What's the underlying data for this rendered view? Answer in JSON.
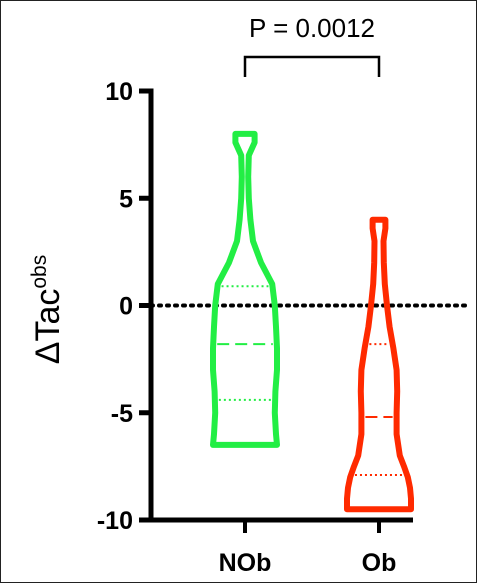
{
  "chart_data": {
    "type": "violin",
    "ylabel_main": "ΔTac",
    "ylabel_sup": "obs",
    "ylim": [
      -10,
      10
    ],
    "yticks": [
      {
        "value": 10,
        "label": "10"
      },
      {
        "value": 5,
        "label": "5"
      },
      {
        "value": 0,
        "label": "0"
      },
      {
        "value": -5,
        "label": "-5"
      },
      {
        "value": -10,
        "label": "-10"
      }
    ],
    "reference_line": {
      "value": 0,
      "style": "dotted"
    },
    "comparison": {
      "text": "P = 0.0012",
      "between": [
        "NOb",
        "Ob"
      ]
    },
    "groups": [
      {
        "name": "NOb",
        "color": "#22ee44",
        "min": -6.5,
        "max": 8,
        "q1": -4.4,
        "median": -1.8,
        "q3": 0.9,
        "density": [
          [
            -6.5,
            1.0
          ],
          [
            -6.0,
            0.97
          ],
          [
            -5.0,
            0.93
          ],
          [
            -4.0,
            0.95
          ],
          [
            -3.0,
            1.0
          ],
          [
            -2.0,
            1.0
          ],
          [
            -1.0,
            0.97
          ],
          [
            0.0,
            0.93
          ],
          [
            1.0,
            0.85
          ],
          [
            2.0,
            0.5
          ],
          [
            3.0,
            0.25
          ],
          [
            4.0,
            0.17
          ],
          [
            5.0,
            0.12
          ],
          [
            6.0,
            0.1
          ],
          [
            7.0,
            0.12
          ],
          [
            7.6,
            0.3
          ],
          [
            8.0,
            0.3
          ]
        ]
      },
      {
        "name": "Ob",
        "color": "#ff2a00",
        "min": -9.5,
        "max": 4,
        "q1": -7.9,
        "median": -5.2,
        "q3": -1.8,
        "density": [
          [
            -9.5,
            1.0
          ],
          [
            -9.0,
            1.0
          ],
          [
            -8.5,
            0.97
          ],
          [
            -8.0,
            0.9
          ],
          [
            -7.5,
            0.78
          ],
          [
            -7.0,
            0.65
          ],
          [
            -6.0,
            0.55
          ],
          [
            -5.0,
            0.55
          ],
          [
            -4.0,
            0.57
          ],
          [
            -3.0,
            0.55
          ],
          [
            -2.0,
            0.45
          ],
          [
            -1.0,
            0.33
          ],
          [
            0.0,
            0.25
          ],
          [
            1.0,
            0.18
          ],
          [
            2.0,
            0.15
          ],
          [
            3.0,
            0.14
          ],
          [
            3.6,
            0.2
          ],
          [
            4.0,
            0.2
          ]
        ]
      }
    ]
  }
}
